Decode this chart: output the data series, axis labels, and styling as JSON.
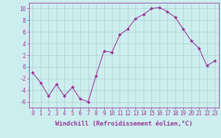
{
  "x": [
    0,
    1,
    2,
    3,
    4,
    5,
    6,
    7,
    8,
    9,
    10,
    11,
    12,
    13,
    14,
    15,
    16,
    17,
    18,
    19,
    20,
    21,
    22,
    23
  ],
  "y": [
    -1,
    -2.7,
    -5,
    -3,
    -5,
    -3.5,
    -5.5,
    -6,
    -1.5,
    2.7,
    2.5,
    5.5,
    6.5,
    8.3,
    9.0,
    10.0,
    10.2,
    9.5,
    8.5,
    6.5,
    4.5,
    3.2,
    0.2,
    1.0
  ],
  "line_color": "#993399",
  "marker": "D",
  "marker_size": 2.0,
  "bg_color": "#cceeee",
  "grid_color": "#aacccc",
  "xlabel": "Windchill (Refroidissement éolien,°C)",
  "xlim": [
    -0.5,
    23.5
  ],
  "ylim": [
    -7,
    11
  ],
  "yticks": [
    -6,
    -4,
    -2,
    0,
    2,
    4,
    6,
    8,
    10
  ],
  "xticks": [
    0,
    1,
    2,
    3,
    4,
    5,
    6,
    7,
    8,
    9,
    10,
    11,
    12,
    13,
    14,
    15,
    16,
    17,
    18,
    19,
    20,
    21,
    22,
    23
  ],
  "tick_color": "#993399",
  "axis_color": "#993399",
  "label_fontsize": 6.5,
  "tick_fontsize": 5.5
}
